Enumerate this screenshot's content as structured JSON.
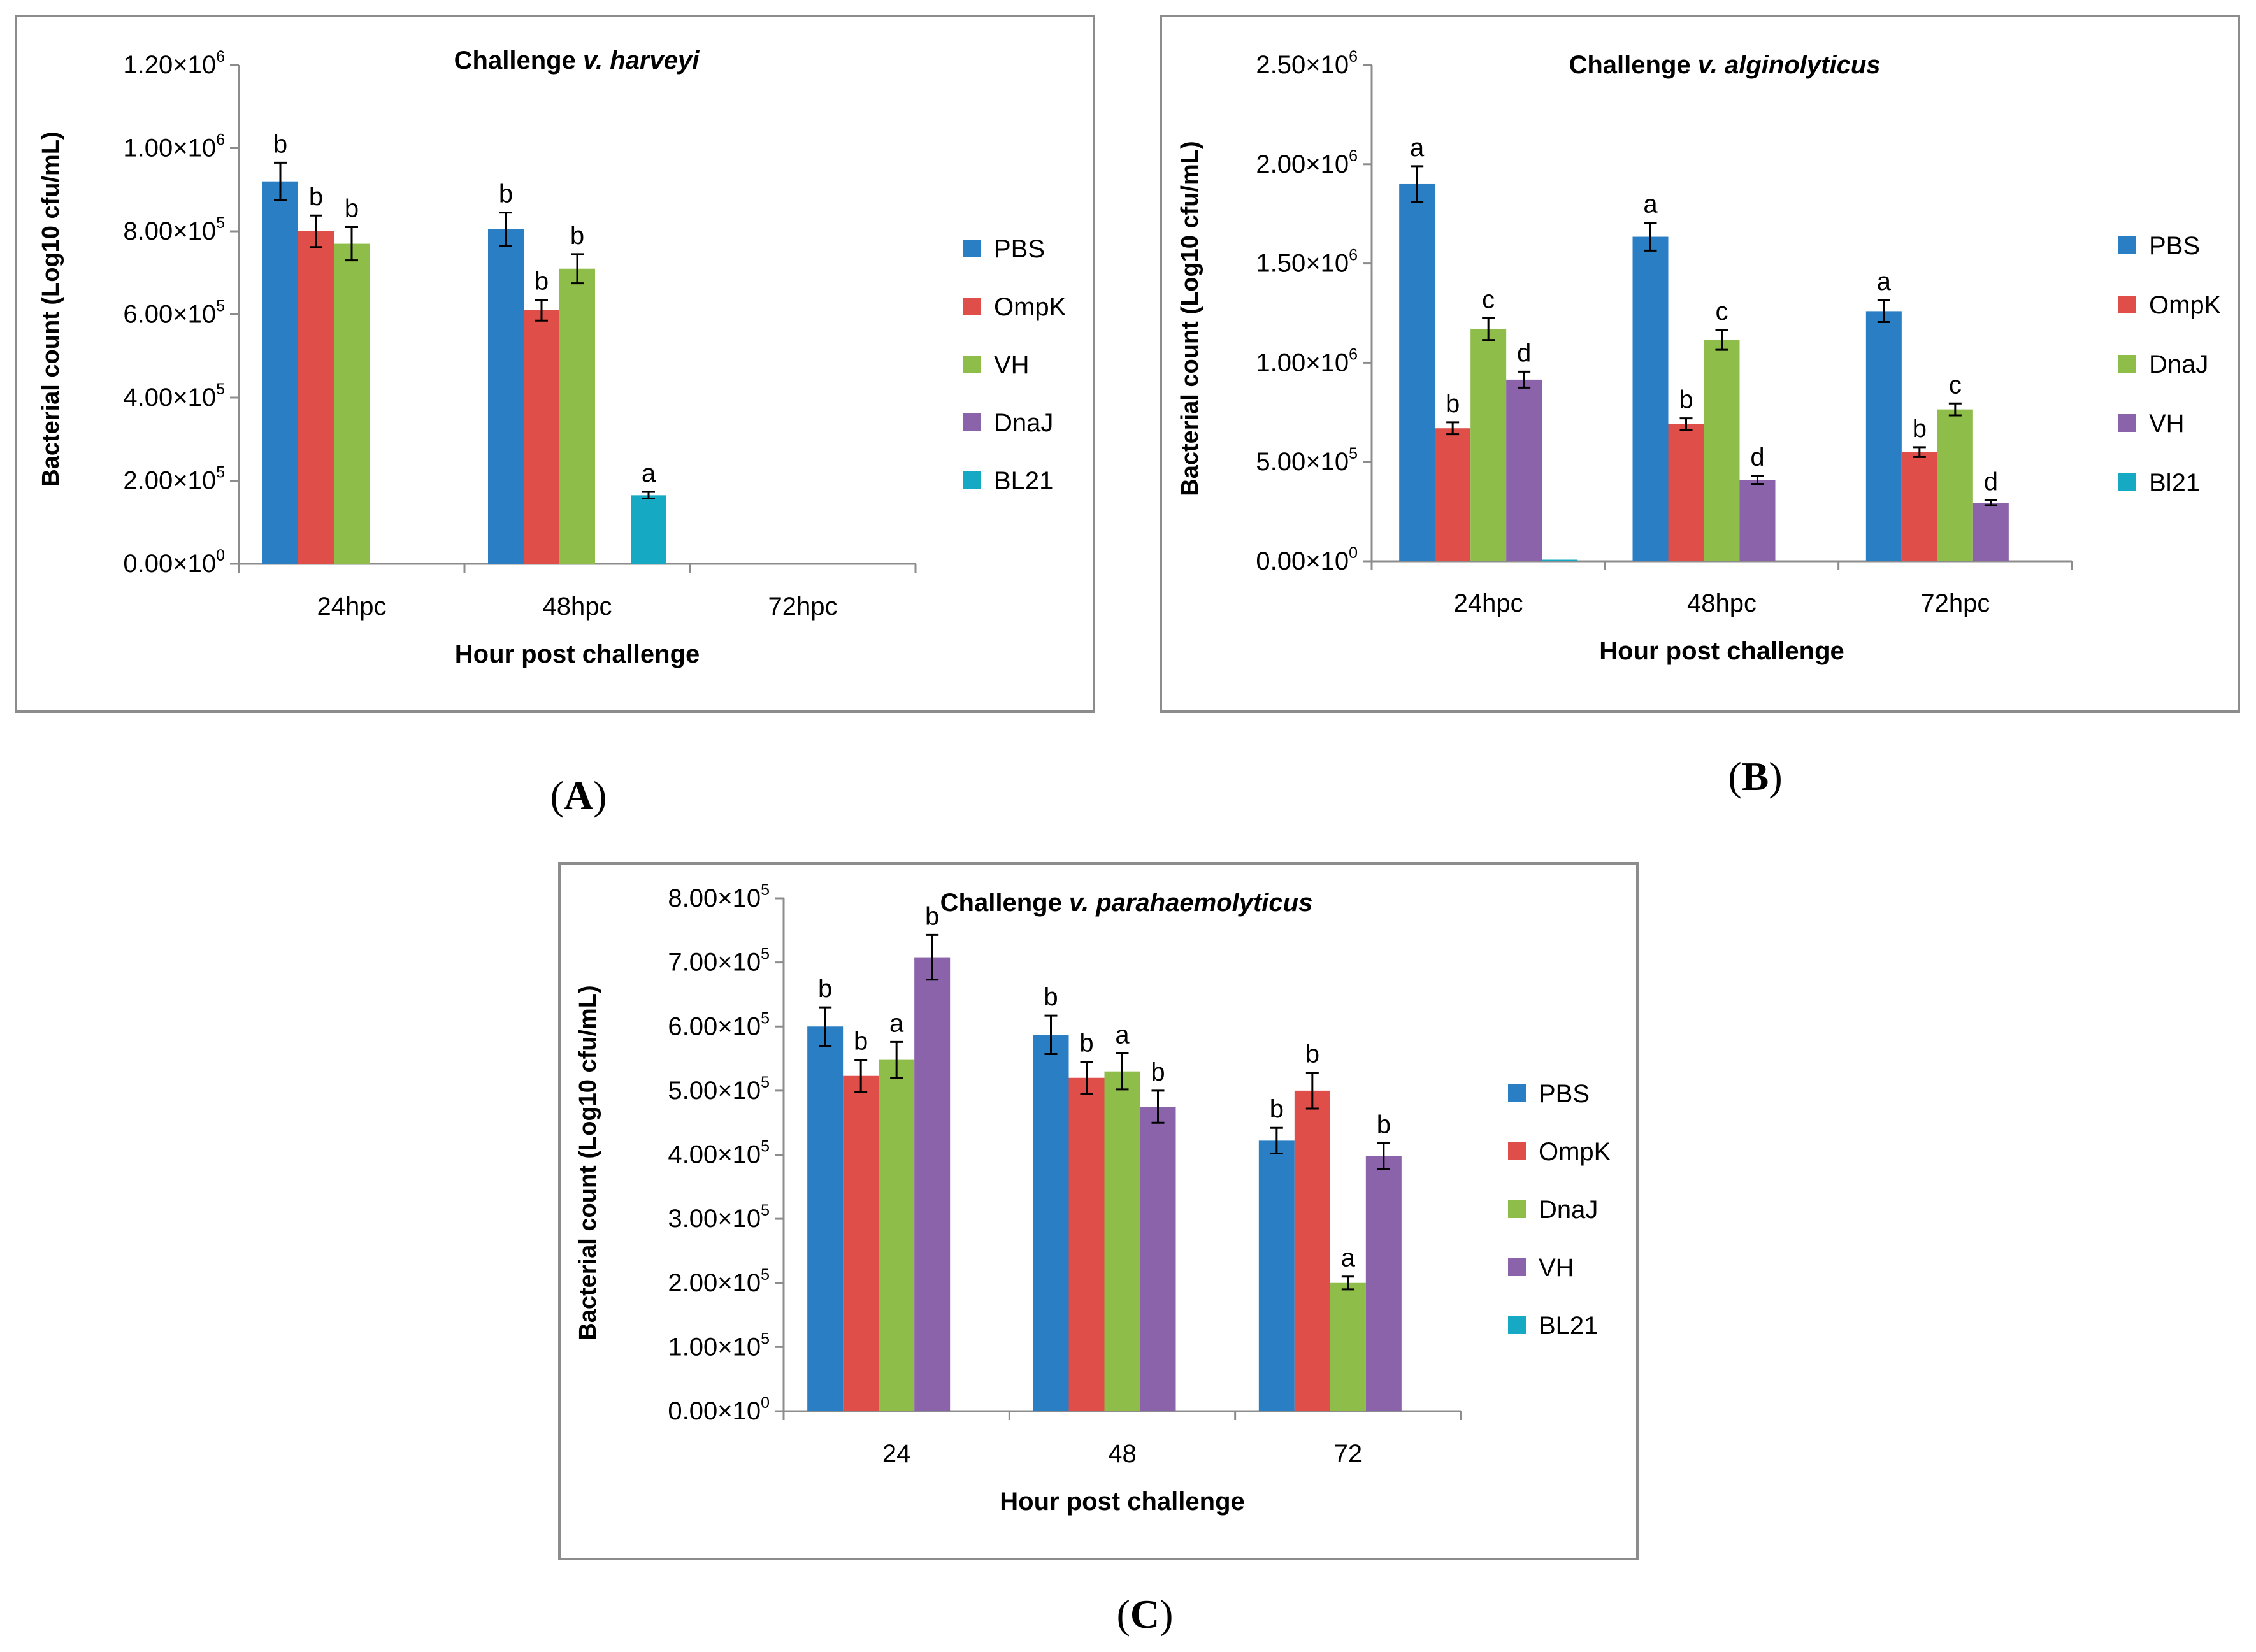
{
  "colors": {
    "PBS": "#2a7fc4",
    "OmpK": "#e04e49",
    "VH": "#8ebd4a",
    "DnaJ": "#8b63ab",
    "BL21": "#15a9c4"
  },
  "chart_data": [
    {
      "panel": "A",
      "type": "bar",
      "title": {
        "prefix": "Challenge ",
        "italic": "v. harveyi"
      },
      "xlabel": "Hour post challenge",
      "ylabel": "Bacterial count (Log10 cfu/mL)",
      "ylim": [
        0,
        1200000
      ],
      "yticks": [
        {
          "value": 0,
          "mantissa": "0.00×10",
          "exp": "0"
        },
        {
          "value": 200000,
          "mantissa": "2.00×10",
          "exp": "5"
        },
        {
          "value": 400000,
          "mantissa": "4.00×10",
          "exp": "5"
        },
        {
          "value": 600000,
          "mantissa": "6.00×10",
          "exp": "5"
        },
        {
          "value": 800000,
          "mantissa": "8.00×10",
          "exp": "5"
        },
        {
          "value": 1000000,
          "mantissa": "1.00×10",
          "exp": "6"
        },
        {
          "value": 1200000,
          "mantissa": "1.20×10",
          "exp": "6"
        }
      ],
      "categories": [
        "24hpc",
        "48hpc",
        "72hpc"
      ],
      "legend": [
        "PBS",
        "OmpK",
        "VH",
        "DnaJ",
        "BL21"
      ],
      "legend_colors": [
        "PBS",
        "OmpK",
        "VH",
        "DnaJ",
        "BL21"
      ],
      "series": [
        {
          "name": "PBS",
          "color": "PBS",
          "values": [
            920000,
            805000,
            0
          ],
          "errors": [
            45000,
            40000,
            0
          ],
          "labels": [
            "b",
            "b",
            ""
          ]
        },
        {
          "name": "OmpK",
          "color": "OmpK",
          "values": [
            800000,
            610000,
            0
          ],
          "errors": [
            38000,
            25000,
            0
          ],
          "labels": [
            "b",
            "b",
            ""
          ]
        },
        {
          "name": "VH",
          "color": "VH",
          "values": [
            770000,
            710000,
            0
          ],
          "errors": [
            40000,
            35000,
            0
          ],
          "labels": [
            "b",
            "b",
            ""
          ]
        },
        {
          "name": "DnaJ",
          "color": "DnaJ",
          "values": [
            0,
            0,
            0
          ],
          "errors": [
            0,
            0,
            0
          ],
          "labels": [
            "",
            "",
            ""
          ]
        },
        {
          "name": "BL21",
          "color": "BL21",
          "values": [
            0,
            165000,
            0
          ],
          "errors": [
            0,
            8000,
            0
          ],
          "labels": [
            "",
            "a",
            ""
          ]
        }
      ]
    },
    {
      "panel": "B",
      "type": "bar",
      "title": {
        "prefix": "Challenge ",
        "italic": "v. alginolyticus"
      },
      "xlabel": "Hour post challenge",
      "ylabel": "Bacterial count (Log10 cfu/mL)",
      "ylim": [
        0,
        2500000
      ],
      "yticks": [
        {
          "value": 0,
          "mantissa": "0.00×10",
          "exp": "0"
        },
        {
          "value": 500000,
          "mantissa": "5.00×10",
          "exp": "5"
        },
        {
          "value": 1000000,
          "mantissa": "1.00×10",
          "exp": "6"
        },
        {
          "value": 1500000,
          "mantissa": "1.50×10",
          "exp": "6"
        },
        {
          "value": 2000000,
          "mantissa": "2.00×10",
          "exp": "6"
        },
        {
          "value": 2500000,
          "mantissa": "2.50×10",
          "exp": "6"
        }
      ],
      "categories": [
        "24hpc",
        "48hpc",
        "72hpc"
      ],
      "legend": [
        "PBS",
        "OmpK",
        "DnaJ",
        "VH",
        "Bl21"
      ],
      "legend_colors": [
        "PBS",
        "OmpK",
        "VH",
        "DnaJ",
        "BL21"
      ],
      "series": [
        {
          "name": "PBS",
          "color": "PBS",
          "values": [
            1900000,
            1635000,
            1260000
          ],
          "errors": [
            90000,
            70000,
            55000
          ],
          "labels": [
            "a",
            "a",
            "a"
          ]
        },
        {
          "name": "OmpK",
          "color": "OmpK",
          "values": [
            670000,
            690000,
            550000
          ],
          "errors": [
            30000,
            30000,
            25000
          ],
          "labels": [
            "b",
            "b",
            "b"
          ]
        },
        {
          "name": "DnaJ",
          "color": "VH",
          "values": [
            1170000,
            1115000,
            765000
          ],
          "errors": [
            55000,
            50000,
            30000
          ],
          "labels": [
            "c",
            "c",
            "c"
          ]
        },
        {
          "name": "VH",
          "color": "DnaJ",
          "values": [
            915000,
            410000,
            295000
          ],
          "errors": [
            40000,
            20000,
            12000
          ],
          "labels": [
            "d",
            "d",
            "d"
          ]
        },
        {
          "name": "Bl21",
          "color": "BL21",
          "values": [
            8000,
            0,
            0
          ],
          "errors": [
            0,
            0,
            0
          ],
          "labels": [
            "",
            "",
            ""
          ]
        }
      ]
    },
    {
      "panel": "C",
      "type": "bar",
      "title": {
        "prefix": "Challenge ",
        "italic": "v. parahaemolyticus"
      },
      "xlabel": "Hour post challenge",
      "ylabel": "Bacterial count (Log10 cfu/mL)",
      "ylim": [
        0,
        800000
      ],
      "yticks": [
        {
          "value": 0,
          "mantissa": "0.00×10",
          "exp": "0"
        },
        {
          "value": 100000,
          "mantissa": "1.00×10",
          "exp": "5"
        },
        {
          "value": 200000,
          "mantissa": "2.00×10",
          "exp": "5"
        },
        {
          "value": 300000,
          "mantissa": "3.00×10",
          "exp": "5"
        },
        {
          "value": 400000,
          "mantissa": "4.00×10",
          "exp": "5"
        },
        {
          "value": 500000,
          "mantissa": "5.00×10",
          "exp": "5"
        },
        {
          "value": 600000,
          "mantissa": "6.00×10",
          "exp": "5"
        },
        {
          "value": 700000,
          "mantissa": "7.00×10",
          "exp": "5"
        },
        {
          "value": 800000,
          "mantissa": "8.00×10",
          "exp": "5"
        }
      ],
      "categories": [
        "24",
        "48",
        "72"
      ],
      "legend": [
        "PBS",
        "OmpK",
        "DnaJ",
        "VH",
        "BL21"
      ],
      "legend_colors": [
        "PBS",
        "OmpK",
        "VH",
        "DnaJ",
        "BL21"
      ],
      "series": [
        {
          "name": "PBS",
          "color": "PBS",
          "values": [
            600000,
            587000,
            422000
          ],
          "errors": [
            30000,
            30000,
            20000
          ],
          "labels": [
            "b",
            "b",
            "b"
          ]
        },
        {
          "name": "OmpK",
          "color": "OmpK",
          "values": [
            523000,
            520000,
            500000
          ],
          "errors": [
            25000,
            25000,
            28000
          ],
          "labels": [
            "b",
            "b",
            "b"
          ]
        },
        {
          "name": "DnaJ",
          "color": "VH",
          "values": [
            548000,
            530000,
            200000
          ],
          "errors": [
            28000,
            28000,
            10000
          ],
          "labels": [
            "a",
            "a",
            "a"
          ]
        },
        {
          "name": "VH",
          "color": "DnaJ",
          "values": [
            708000,
            475000,
            398000
          ],
          "errors": [
            35000,
            25000,
            20000
          ],
          "labels": [
            "b",
            "b",
            "b"
          ]
        },
        {
          "name": "BL21",
          "color": "BL21",
          "values": [
            0,
            0,
            0
          ],
          "errors": [
            0,
            0,
            0
          ],
          "labels": [
            "",
            "",
            ""
          ]
        }
      ]
    }
  ],
  "captions": [
    "A",
    "B",
    "C"
  ]
}
